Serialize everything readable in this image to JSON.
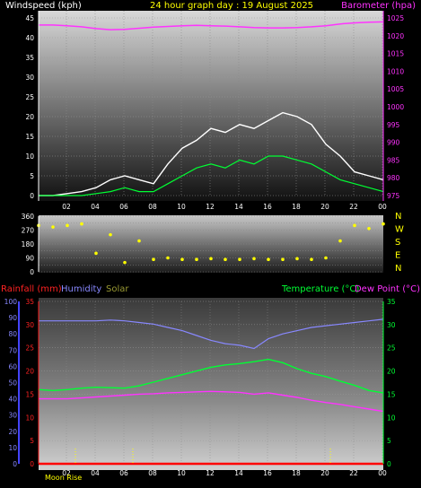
{
  "header": {
    "left_title": "Windspeed (kph)",
    "center_title": "24 hour graph day : 19 August 2025",
    "right_title": "Barometer (hpa)",
    "colors": {
      "left": "#ffffff",
      "center": "#ffff00",
      "right": "#ff33ff"
    }
  },
  "bottom_header": {
    "rainfall": "Rainfall (mm)",
    "humidity": "Humidity",
    "solar": "Solar",
    "temperature": "Temperature (°C)",
    "dewpoint": "Dew Point (°C)",
    "colors": {
      "rainfall": "#ff2222",
      "humidity": "#8888ff",
      "solar": "#999933",
      "temperature": "#00ff33",
      "dewpoint": "#ff33ff"
    }
  },
  "footer": {
    "moon_rise": "Moon Rise"
  },
  "chart_data": [
    {
      "type": "line",
      "name": "wind_barometer",
      "x_ticks": [
        "02",
        "04",
        "06",
        "08",
        "10",
        "12",
        "14",
        "16",
        "18",
        "20",
        "22",
        "00"
      ],
      "y_left_ticks": [
        0,
        5,
        10,
        15,
        20,
        25,
        30,
        35,
        40,
        45
      ],
      "y_left_range": [
        0,
        45
      ],
      "y_right_ticks": [
        975,
        980,
        985,
        990,
        995,
        1000,
        1005,
        1010,
        1015,
        1020,
        1025
      ],
      "y_right_range": [
        975,
        1025
      ],
      "series": [
        {
          "color": "#ff33ff",
          "values": [
            1023.0,
            1023,
            1022.8,
            1022.5,
            1022.0,
            1021.7,
            1021.8,
            1022.1,
            1022.4,
            1022.6,
            1022.8,
            1022.9,
            1022.8,
            1022.7,
            1022.5,
            1022.3,
            1022.2,
            1022.2,
            1022.3,
            1022.5,
            1022.8,
            1023.3,
            1023.6,
            1023.8,
            1023.9
          ]
        },
        {
          "color": "#ffffff",
          "values": [
            0,
            0,
            0.5,
            1,
            2,
            4,
            5,
            4,
            3,
            8,
            12,
            14,
            17,
            16,
            18,
            17,
            19,
            21,
            20,
            18,
            13,
            10,
            6,
            5,
            4
          ]
        },
        {
          "color": "#00ff33",
          "values": [
            0,
            0,
            0,
            0,
            0.5,
            1,
            2,
            1,
            1,
            3,
            5,
            7,
            8,
            7,
            9,
            8,
            10,
            10,
            9,
            8,
            6,
            4,
            3,
            2,
            1
          ]
        }
      ]
    },
    {
      "type": "scatter",
      "name": "wind_direction",
      "y_ticks": [
        0,
        45,
        90,
        135,
        180,
        225,
        270,
        315,
        360
      ],
      "y_range": [
        0,
        360
      ],
      "compass_labels": [
        "N",
        "W",
        "S",
        "E",
        "N"
      ],
      "series": [
        {
          "color": "#ffff00",
          "values": [
            300,
            290,
            300,
            310,
            120,
            240,
            60,
            200,
            80,
            90,
            80,
            80,
            85,
            80,
            80,
            85,
            80,
            80,
            85,
            80,
            90,
            200,
            300,
            280,
            310
          ]
        }
      ]
    },
    {
      "type": "line",
      "name": "temp_humidity_rain",
      "x_ticks": [
        "02",
        "04",
        "06",
        "08",
        "10",
        "12",
        "14",
        "16",
        "18",
        "20",
        "22",
        "00"
      ],
      "y_left1_ticks": [
        0,
        10,
        20,
        30,
        40,
        50,
        60,
        70,
        80,
        90,
        100
      ],
      "y_left1_range": [
        0,
        100
      ],
      "y_left2_ticks": [
        0,
        5,
        10,
        15,
        20,
        25,
        30,
        35
      ],
      "y_left2_range": [
        0,
        35
      ],
      "y_right_ticks": [
        0,
        5,
        10,
        15,
        20,
        25,
        30,
        35
      ],
      "y_right_range": [
        0,
        35
      ],
      "series": [
        {
          "color": "#8888ff",
          "values": [
            88,
            88,
            88,
            88,
            88,
            88.5,
            88,
            87,
            86,
            84,
            82,
            79,
            76,
            74,
            73,
            71,
            77,
            80,
            82,
            84,
            85,
            86,
            87,
            88,
            89
          ]
        },
        {
          "color": "#00ff33",
          "values": [
            16.0,
            15.8,
            16.0,
            16.3,
            16.5,
            16.4,
            16.3,
            16.8,
            17.6,
            18.4,
            19.2,
            20.0,
            20.8,
            21.3,
            21.6,
            22.0,
            22.5,
            21.8,
            20.5,
            19.5,
            18.8,
            17.8,
            16.9,
            15.8,
            15.3
          ]
        },
        {
          "color": "#ff33ff",
          "values": [
            14.0,
            14.0,
            14.0,
            14.2,
            14.4,
            14.6,
            14.8,
            15.0,
            15.1,
            15.3,
            15.4,
            15.5,
            15.6,
            15.5,
            15.4,
            15.0,
            15.3,
            14.8,
            14.3,
            13.7,
            13.2,
            12.8,
            12.3,
            11.8,
            11.3
          ]
        },
        {
          "color": "#ff0000",
          "values": [
            0,
            0,
            0,
            0,
            0,
            0,
            0,
            0,
            0,
            0,
            0,
            0,
            0,
            0,
            0,
            0,
            0,
            0,
            0,
            0,
            0,
            0,
            0,
            0,
            0
          ]
        }
      ]
    }
  ]
}
